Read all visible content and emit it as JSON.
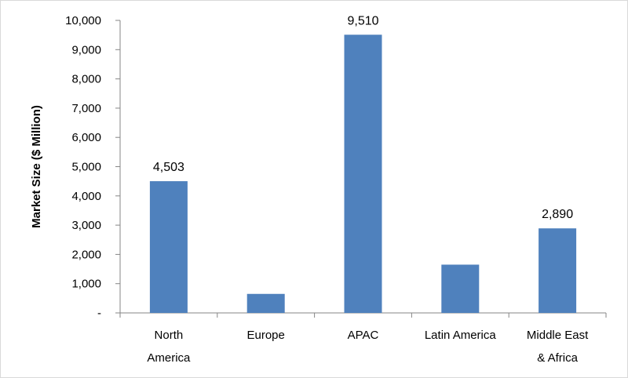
{
  "chart_data": {
    "type": "bar",
    "title": "",
    "xlabel": "",
    "ylabel": "Market Size ($ Million)",
    "ylim": [
      0,
      10000
    ],
    "y_ticks": [
      0,
      1000,
      2000,
      3000,
      4000,
      5000,
      6000,
      7000,
      8000,
      9000,
      10000
    ],
    "y_tick_labels": [
      "-",
      "1,000",
      "2,000",
      "3,000",
      "4,000",
      "5,000",
      "6,000",
      "7,000",
      "8,000",
      "9,000",
      "10,000"
    ],
    "categories": [
      [
        "North",
        "America"
      ],
      [
        "Europe"
      ],
      [
        "APAC"
      ],
      [
        "Latin America"
      ],
      [
        "Middle East",
        "& Africa"
      ]
    ],
    "values": [
      4503,
      650,
      9510,
      1650,
      2890
    ],
    "data_labels": [
      "4,503",
      "",
      "9,510",
      "",
      "2,890"
    ],
    "bar_color": "#4F81BD",
    "grid": false,
    "legend": "none"
  }
}
